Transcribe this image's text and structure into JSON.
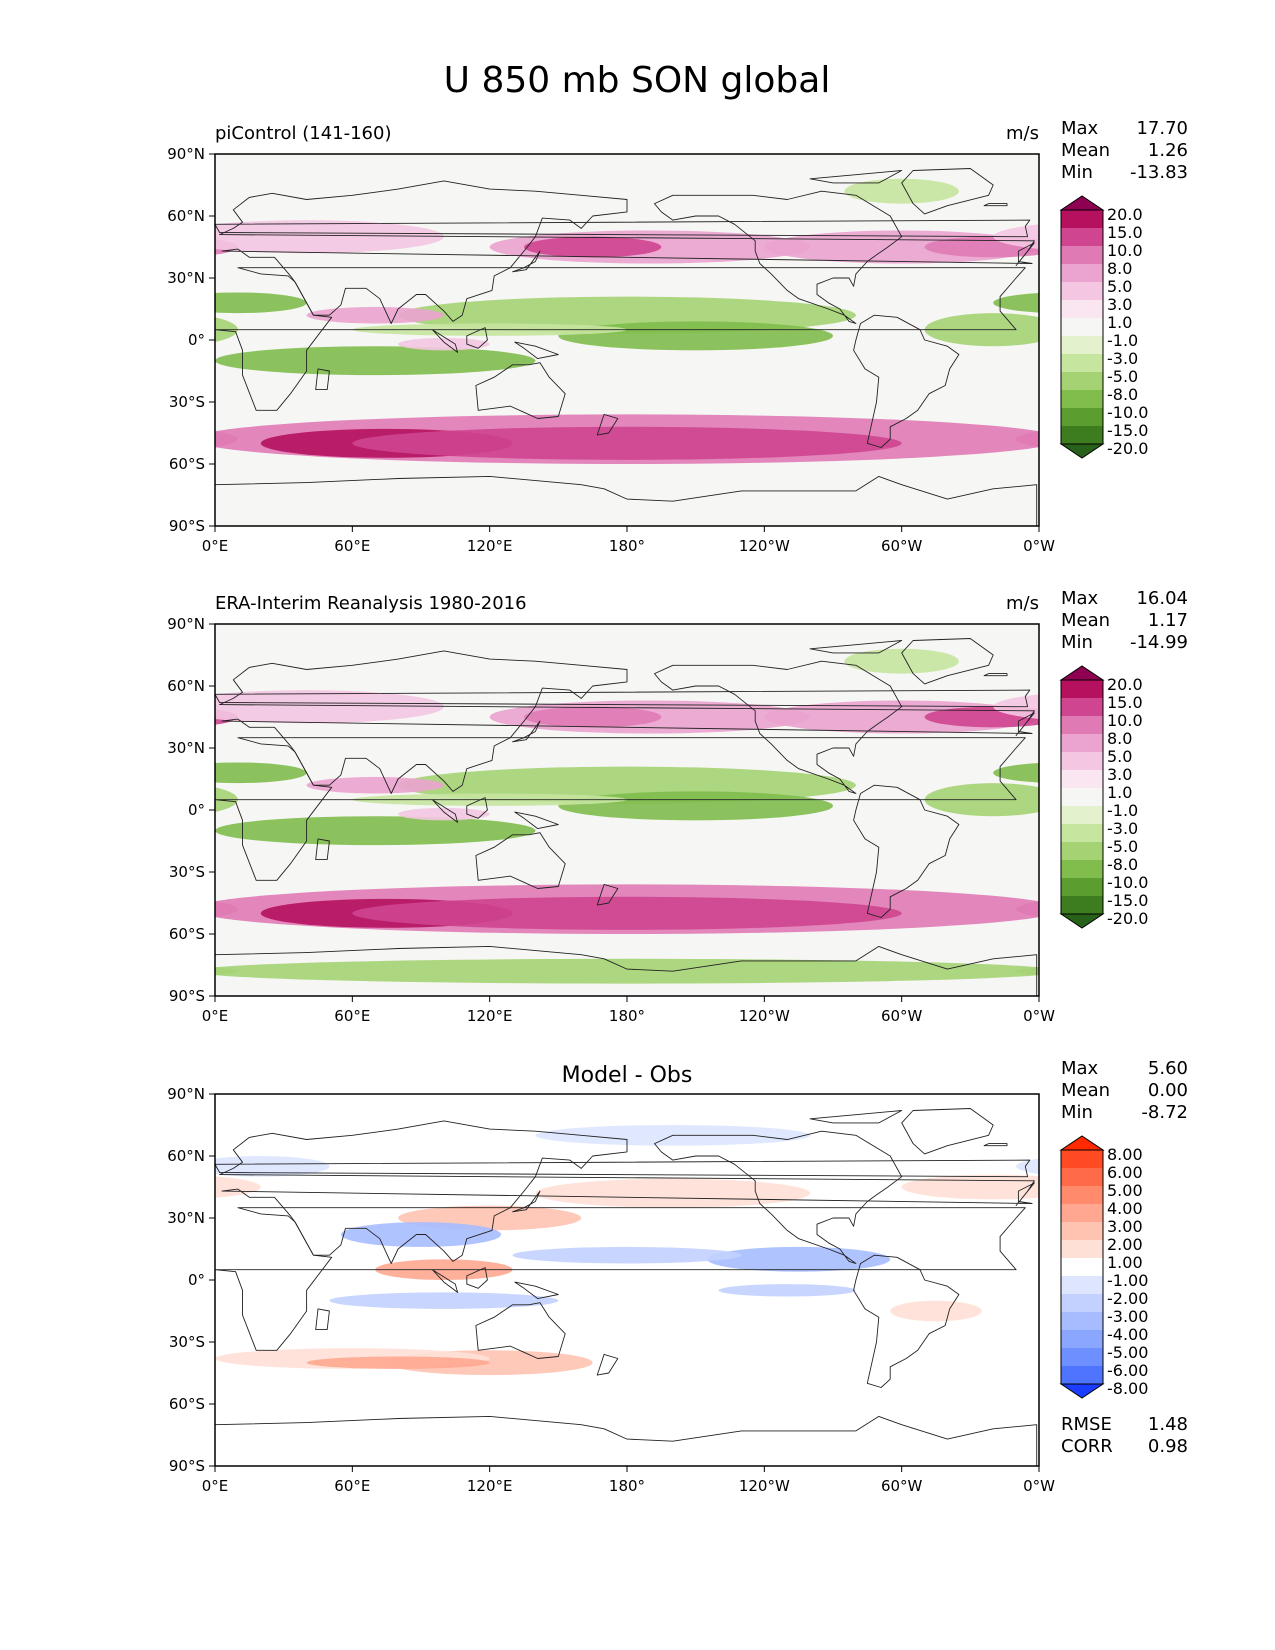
{
  "title": "U 850 mb SON global",
  "xticks": [
    "0°E",
    "60°E",
    "120°E",
    "180°",
    "120°W",
    "60°W",
    "0°W"
  ],
  "yticks": [
    "90°N",
    "60°N",
    "30°N",
    "0°",
    "30°S",
    "60°S",
    "90°S"
  ],
  "panels": [
    {
      "id": "model",
      "title_left": "piControl (141-160)",
      "title_center": "",
      "units": "m/s",
      "stats": [
        {
          "label": "Max",
          "value": "17.70"
        },
        {
          "label": "Mean",
          "value": "1.26"
        },
        {
          "label": "Min",
          "value": "-13.83"
        }
      ],
      "colorbar_levels": [
        "20.0",
        "15.0",
        "10.0",
        "8.0",
        "5.0",
        "3.0",
        "1.0",
        "-1.0",
        "-3.0",
        "-5.0",
        "-8.0",
        "-10.0",
        "-15.0",
        "-20.0"
      ],
      "colorbar_colors": [
        "#8e0152",
        "#b5115f",
        "#cf4590",
        "#e07ab5",
        "#eba3cf",
        "#f4c6e2",
        "#fae6f1",
        "#f6f6f4",
        "#e3f2cc",
        "#c6e6a0",
        "#a5d373",
        "#80bd4c",
        "#5b9d2f",
        "#3e7d1f",
        "#28621a"
      ],
      "extras": []
    },
    {
      "id": "obs",
      "title_left": "ERA-Interim Reanalysis 1980-2016",
      "title_center": "",
      "units": "m/s",
      "stats": [
        {
          "label": "Max",
          "value": "16.04"
        },
        {
          "label": "Mean",
          "value": "1.17"
        },
        {
          "label": "Min",
          "value": "-14.99"
        }
      ],
      "colorbar_levels": [
        "20.0",
        "15.0",
        "10.0",
        "8.0",
        "5.0",
        "3.0",
        "1.0",
        "-1.0",
        "-3.0",
        "-5.0",
        "-8.0",
        "-10.0",
        "-15.0",
        "-20.0"
      ],
      "colorbar_colors": [
        "#8e0152",
        "#b5115f",
        "#cf4590",
        "#e07ab5",
        "#eba3cf",
        "#f4c6e2",
        "#fae6f1",
        "#f6f6f4",
        "#e3f2cc",
        "#c6e6a0",
        "#a5d373",
        "#80bd4c",
        "#5b9d2f",
        "#3e7d1f",
        "#28621a"
      ],
      "extras": []
    },
    {
      "id": "diff",
      "title_left": "",
      "title_center": "Model - Obs",
      "units": "",
      "stats": [
        {
          "label": "Max",
          "value": "5.60"
        },
        {
          "label": "Mean",
          "value": "0.00"
        },
        {
          "label": "Min",
          "value": "-8.72"
        }
      ],
      "colorbar_levels": [
        "8.00",
        "6.00",
        "5.00",
        "4.00",
        "3.00",
        "2.00",
        "1.00",
        "-1.00",
        "-2.00",
        "-3.00",
        "-4.00",
        "-5.00",
        "-6.00",
        "-8.00"
      ],
      "colorbar_colors": [
        "#ff2a00",
        "#ff4a24",
        "#ff6a48",
        "#ff8a6c",
        "#ffa790",
        "#ffc3b2",
        "#ffe0d6",
        "#ffffff",
        "#dde5ff",
        "#c2d1ff",
        "#a6bcff",
        "#8aa6ff",
        "#6d8fff",
        "#4f74ff",
        "#1b3dff"
      ],
      "extras": [
        {
          "label": "RMSE",
          "value": "1.48"
        },
        {
          "label": "CORR",
          "value": "0.98"
        }
      ]
    }
  ]
}
